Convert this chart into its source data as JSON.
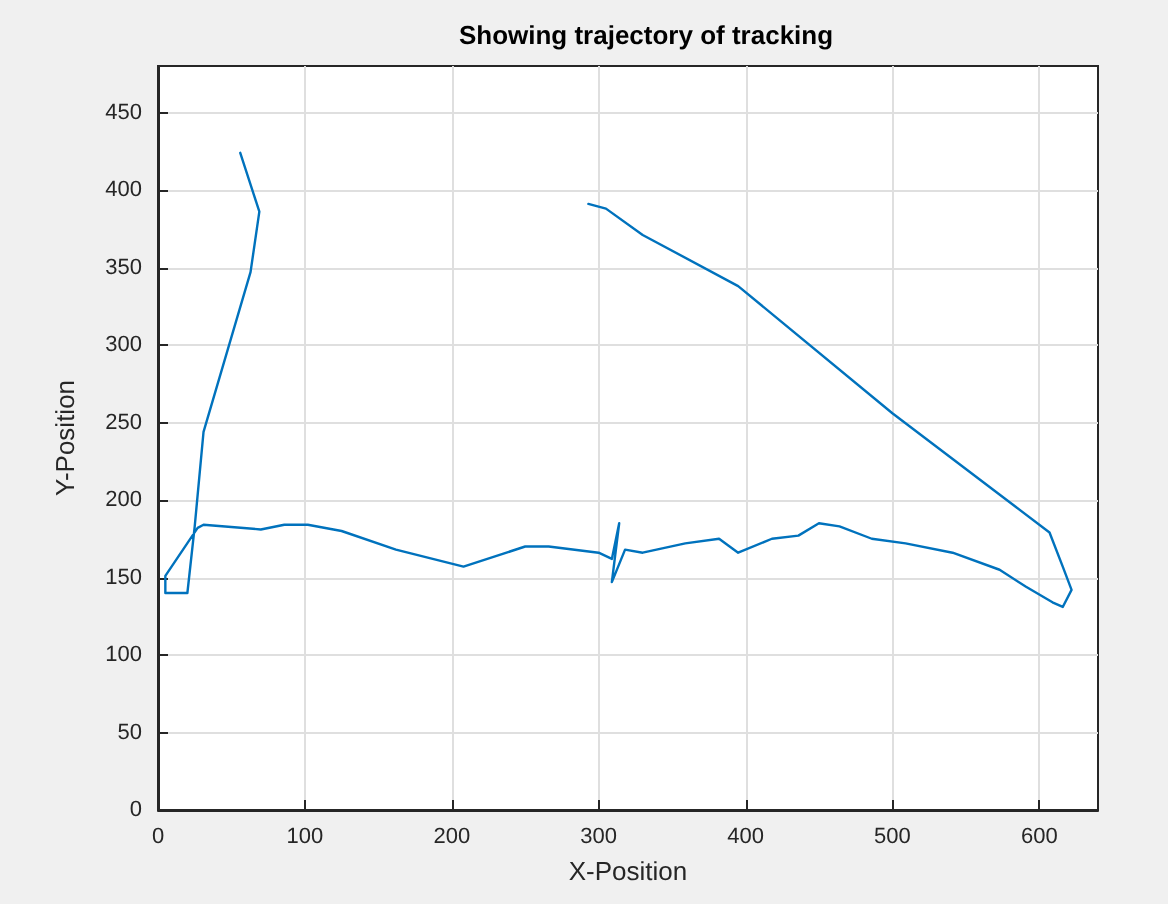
{
  "chart_data": {
    "type": "line",
    "title": "Showing trajectory of tracking",
    "xlabel": "X-Position",
    "ylabel": "Y-Position",
    "xlim": [
      0,
      640
    ],
    "xticks": [
      0,
      100,
      200,
      300,
      400,
      500,
      600
    ],
    "ylim": [
      0,
      480
    ],
    "yticks": [
      0,
      50,
      100,
      150,
      200,
      250,
      300,
      350,
      400,
      450
    ],
    "grid": true,
    "marker": "none",
    "line_style": "solid",
    "series": [
      {
        "color": "#0072bd",
        "x": [
          56,
          69,
          63,
          31,
          25,
          20,
          5,
          5,
          27,
          31,
          70,
          86,
          102,
          125,
          162,
          208,
          250,
          266,
          300,
          309,
          314,
          309,
          318,
          330,
          359,
          382,
          395,
          418,
          436,
          450,
          464,
          486,
          509,
          541,
          573,
          591,
          609,
          616,
          622,
          616,
          607,
          500,
          395,
          330,
          305,
          293
        ],
        "values": [
          424,
          386,
          347,
          244,
          183,
          140,
          140,
          151,
          182,
          184,
          181,
          184,
          184,
          180,
          168,
          157,
          170,
          170,
          166,
          162,
          185,
          147,
          168,
          166,
          172,
          175,
          166,
          175,
          177,
          185,
          183,
          175,
          172,
          166,
          155,
          144,
          134,
          131,
          142,
          157,
          179,
          256,
          338,
          371,
          388,
          391
        ]
      }
    ]
  }
}
